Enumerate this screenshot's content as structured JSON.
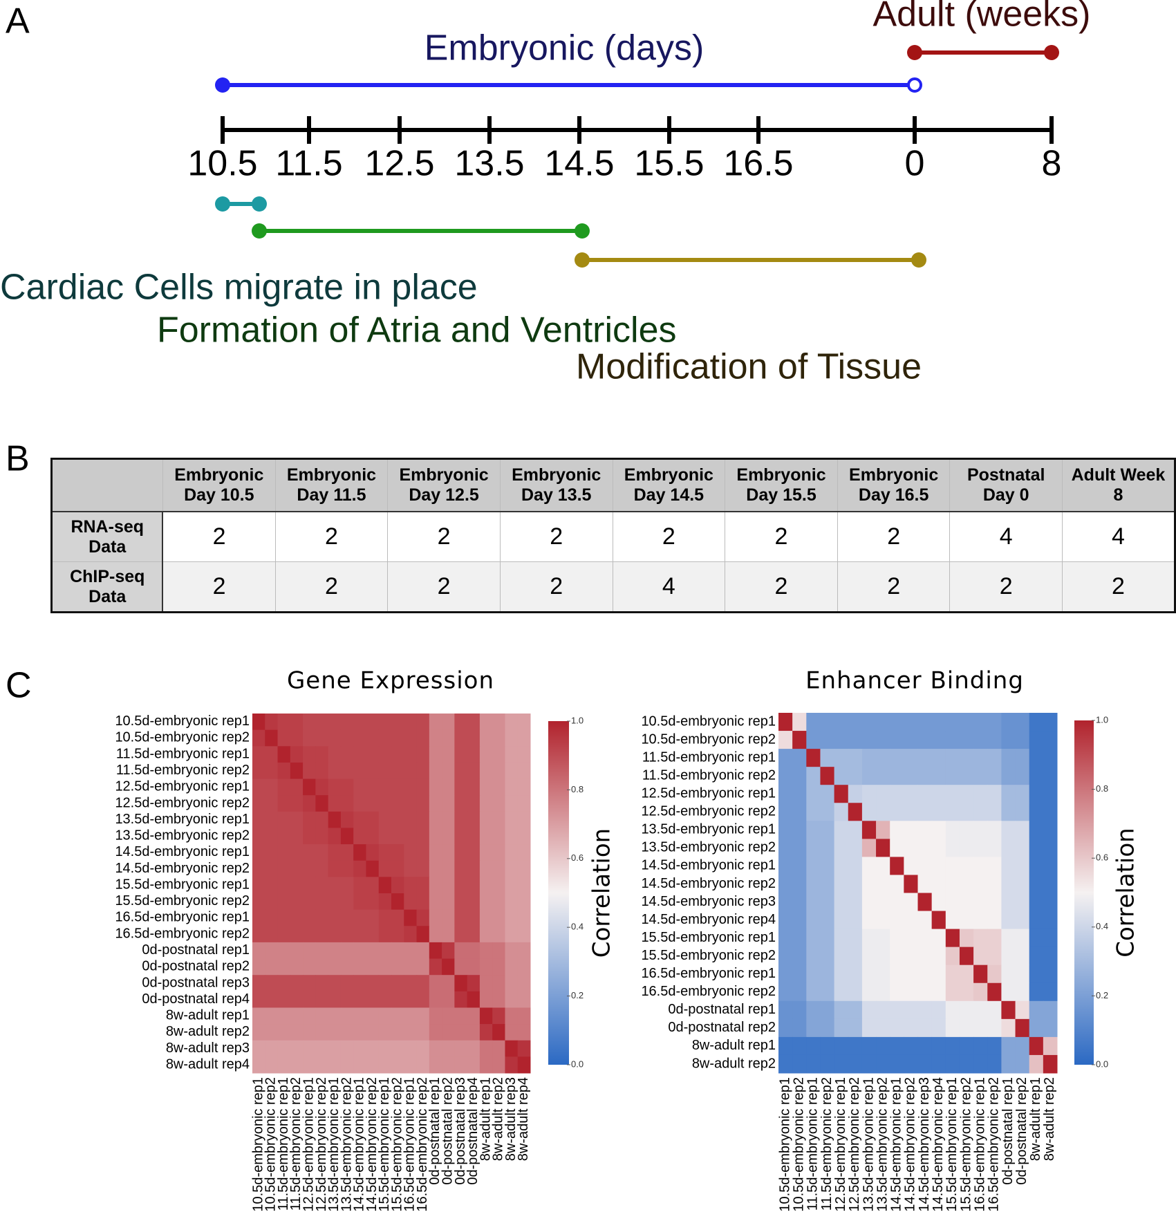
{
  "panels": {
    "a": "A",
    "b": "B",
    "c": "C"
  },
  "timeline": {
    "ticks": [
      "10.5",
      "11.5",
      "12.5",
      "13.5",
      "14.5",
      "15.5",
      "16.5",
      "0",
      "8"
    ],
    "phases": [
      {
        "label": "Embryonic (days)"
      },
      {
        "label": "Adult (weeks)"
      },
      {
        "label": "Cardiac Cells migrate in place"
      },
      {
        "label": "Formation of Atria and Ventricles"
      },
      {
        "label": "Modification of Tissue"
      }
    ]
  },
  "table": {
    "header": [
      [
        "Embryonic",
        "Day 10.5"
      ],
      [
        "Embryonic",
        "Day 11.5"
      ],
      [
        "Embryonic",
        "Day 12.5"
      ],
      [
        "Embryonic",
        "Day 13.5"
      ],
      [
        "Embryonic",
        "Day 14.5"
      ],
      [
        "Embryonic",
        "Day 15.5"
      ],
      [
        "Embryonic",
        "Day 16.5"
      ],
      [
        "Postnatal",
        "Day 0"
      ],
      [
        "Adult Week",
        "8"
      ]
    ],
    "rows": [
      {
        "label": [
          "RNA-seq",
          "Data"
        ],
        "cells": [
          2,
          2,
          2,
          2,
          2,
          2,
          2,
          4,
          4
        ]
      },
      {
        "label": [
          "ChIP-seq",
          "Data"
        ],
        "cells": [
          2,
          2,
          2,
          2,
          4,
          2,
          2,
          2,
          2
        ]
      }
    ]
  },
  "chart_data": [
    {
      "type": "heatmap",
      "title": "Gene Expression",
      "colorbar_label": "Correlation",
      "rows": [
        "10.5d-embryonic rep1",
        "10.5d-embryonic rep2",
        "11.5d-embryonic rep1",
        "11.5d-embryonic rep2",
        "12.5d-embryonic rep1",
        "12.5d-embryonic rep2",
        "13.5d-embryonic rep1",
        "13.5d-embryonic rep2",
        "14.5d-embryonic rep1",
        "14.5d-embryonic rep2",
        "15.5d-embryonic rep1",
        "15.5d-embryonic rep2",
        "16.5d-embryonic rep1",
        "16.5d-embryonic rep2",
        "0d-postnatal rep1",
        "0d-postnatal rep2",
        "0d-postnatal rep3",
        "0d-postnatal rep4",
        "8w-adult rep1",
        "8w-adult rep2",
        "8w-adult rep3",
        "8w-adult rep4"
      ],
      "columns": [
        "10.5d-embryonic rep1",
        "10.5d-embryonic rep2",
        "11.5d-embryonic rep1",
        "11.5d-embryonic rep2",
        "12.5d-embryonic rep1",
        "12.5d-embryonic rep2",
        "13.5d-embryonic rep1",
        "13.5d-embryonic rep2",
        "14.5d-embryonic rep1",
        "14.5d-embryonic rep2",
        "15.5d-embryonic rep1",
        "15.5d-embryonic rep2",
        "16.5d-embryonic rep1",
        "16.5d-embryonic rep2",
        "0d-postnatal rep1",
        "0d-postnatal rep2",
        "0d-postnatal rep3",
        "0d-postnatal rep4",
        "8w-adult rep1",
        "8w-adult rep2",
        "8w-adult rep3",
        "8w-adult rep4"
      ],
      "values": [
        [
          1,
          0.95,
          0.93,
          0.93,
          0.91,
          0.91,
          0.91,
          0.91,
          0.91,
          0.91,
          0.91,
          0.91,
          0.91,
          0.91,
          0.77,
          0.77,
          0.9,
          0.9,
          0.74,
          0.74,
          0.7,
          0.7
        ],
        [
          0.95,
          1,
          0.93,
          0.93,
          0.91,
          0.91,
          0.91,
          0.91,
          0.91,
          0.91,
          0.91,
          0.91,
          0.91,
          0.91,
          0.77,
          0.77,
          0.9,
          0.9,
          0.74,
          0.74,
          0.7,
          0.7
        ],
        [
          0.93,
          0.93,
          1,
          0.95,
          0.93,
          0.93,
          0.91,
          0.91,
          0.91,
          0.91,
          0.91,
          0.91,
          0.91,
          0.91,
          0.77,
          0.77,
          0.9,
          0.9,
          0.74,
          0.74,
          0.7,
          0.7
        ],
        [
          0.93,
          0.93,
          0.95,
          1,
          0.93,
          0.93,
          0.91,
          0.91,
          0.91,
          0.91,
          0.91,
          0.91,
          0.91,
          0.91,
          0.77,
          0.77,
          0.9,
          0.9,
          0.74,
          0.74,
          0.7,
          0.7
        ],
        [
          0.91,
          0.91,
          0.93,
          0.93,
          1,
          0.95,
          0.93,
          0.93,
          0.91,
          0.91,
          0.91,
          0.91,
          0.91,
          0.91,
          0.77,
          0.77,
          0.9,
          0.9,
          0.74,
          0.74,
          0.7,
          0.7
        ],
        [
          0.91,
          0.91,
          0.93,
          0.93,
          0.95,
          1,
          0.93,
          0.93,
          0.91,
          0.91,
          0.91,
          0.91,
          0.91,
          0.91,
          0.77,
          0.77,
          0.9,
          0.9,
          0.74,
          0.74,
          0.7,
          0.7
        ],
        [
          0.91,
          0.91,
          0.91,
          0.91,
          0.93,
          0.93,
          1,
          0.95,
          0.93,
          0.93,
          0.91,
          0.91,
          0.91,
          0.91,
          0.77,
          0.77,
          0.9,
          0.9,
          0.74,
          0.74,
          0.7,
          0.7
        ],
        [
          0.91,
          0.91,
          0.91,
          0.91,
          0.93,
          0.93,
          0.95,
          1,
          0.93,
          0.93,
          0.91,
          0.91,
          0.91,
          0.91,
          0.77,
          0.77,
          0.9,
          0.9,
          0.74,
          0.74,
          0.7,
          0.7
        ],
        [
          0.91,
          0.91,
          0.91,
          0.91,
          0.91,
          0.91,
          0.93,
          0.93,
          1,
          0.95,
          0.93,
          0.93,
          0.91,
          0.91,
          0.77,
          0.77,
          0.9,
          0.9,
          0.74,
          0.74,
          0.7,
          0.7
        ],
        [
          0.91,
          0.91,
          0.91,
          0.91,
          0.91,
          0.91,
          0.93,
          0.93,
          0.95,
          1,
          0.93,
          0.93,
          0.91,
          0.91,
          0.77,
          0.77,
          0.9,
          0.9,
          0.74,
          0.74,
          0.7,
          0.7
        ],
        [
          0.91,
          0.91,
          0.91,
          0.91,
          0.91,
          0.91,
          0.91,
          0.91,
          0.93,
          0.93,
          1,
          0.95,
          0.93,
          0.93,
          0.77,
          0.77,
          0.9,
          0.9,
          0.74,
          0.74,
          0.7,
          0.7
        ],
        [
          0.91,
          0.91,
          0.91,
          0.91,
          0.91,
          0.91,
          0.91,
          0.91,
          0.93,
          0.93,
          0.95,
          1,
          0.93,
          0.93,
          0.77,
          0.77,
          0.9,
          0.9,
          0.74,
          0.74,
          0.7,
          0.7
        ],
        [
          0.91,
          0.91,
          0.91,
          0.91,
          0.91,
          0.91,
          0.91,
          0.91,
          0.91,
          0.91,
          0.93,
          0.93,
          1,
          0.95,
          0.77,
          0.77,
          0.9,
          0.9,
          0.74,
          0.74,
          0.7,
          0.7
        ],
        [
          0.91,
          0.91,
          0.91,
          0.91,
          0.91,
          0.91,
          0.91,
          0.91,
          0.91,
          0.91,
          0.93,
          0.93,
          0.95,
          1,
          0.77,
          0.77,
          0.9,
          0.9,
          0.74,
          0.74,
          0.7,
          0.7
        ],
        [
          0.77,
          0.77,
          0.77,
          0.77,
          0.77,
          0.77,
          0.77,
          0.77,
          0.77,
          0.77,
          0.77,
          0.77,
          0.77,
          0.77,
          1,
          0.95,
          0.82,
          0.82,
          0.8,
          0.8,
          0.74,
          0.74
        ],
        [
          0.77,
          0.77,
          0.77,
          0.77,
          0.77,
          0.77,
          0.77,
          0.77,
          0.77,
          0.77,
          0.77,
          0.77,
          0.77,
          0.77,
          0.95,
          1,
          0.82,
          0.82,
          0.8,
          0.8,
          0.74,
          0.74
        ],
        [
          0.9,
          0.9,
          0.9,
          0.9,
          0.9,
          0.9,
          0.9,
          0.9,
          0.9,
          0.9,
          0.9,
          0.9,
          0.9,
          0.9,
          0.82,
          0.82,
          1,
          0.96,
          0.8,
          0.8,
          0.74,
          0.74
        ],
        [
          0.9,
          0.9,
          0.9,
          0.9,
          0.9,
          0.9,
          0.9,
          0.9,
          0.9,
          0.9,
          0.9,
          0.9,
          0.9,
          0.9,
          0.82,
          0.82,
          0.96,
          1,
          0.8,
          0.8,
          0.74,
          0.74
        ],
        [
          0.74,
          0.74,
          0.74,
          0.74,
          0.74,
          0.74,
          0.74,
          0.74,
          0.74,
          0.74,
          0.74,
          0.74,
          0.74,
          0.74,
          0.8,
          0.8,
          0.8,
          0.8,
          1,
          0.95,
          0.8,
          0.8
        ],
        [
          0.74,
          0.74,
          0.74,
          0.74,
          0.74,
          0.74,
          0.74,
          0.74,
          0.74,
          0.74,
          0.74,
          0.74,
          0.74,
          0.74,
          0.8,
          0.8,
          0.8,
          0.8,
          0.95,
          1,
          0.8,
          0.8
        ],
        [
          0.7,
          0.7,
          0.7,
          0.7,
          0.7,
          0.7,
          0.7,
          0.7,
          0.7,
          0.7,
          0.7,
          0.7,
          0.7,
          0.7,
          0.74,
          0.74,
          0.74,
          0.74,
          0.8,
          0.8,
          1,
          0.96
        ],
        [
          0.7,
          0.7,
          0.7,
          0.7,
          0.7,
          0.7,
          0.7,
          0.7,
          0.7,
          0.7,
          0.7,
          0.7,
          0.7,
          0.7,
          0.74,
          0.74,
          0.74,
          0.74,
          0.8,
          0.8,
          0.96,
          1
        ]
      ],
      "zlim": [
        0,
        1
      ],
      "zticks": [
        {
          "value": 0,
          "label": "0.0"
        },
        0.2,
        0.4,
        0.6,
        0.8,
        {
          "value": 1,
          "label": "1.0"
        }
      ],
      "colormap": [
        "#2b69c3",
        "#f5f1f1",
        "#b1232d"
      ]
    },
    {
      "type": "heatmap",
      "title": "Enhancer Binding",
      "colorbar_label": "Correlation",
      "rows": [
        "10.5d-embryonic rep1",
        "10.5d-embryonic rep2",
        "11.5d-embryonic rep1",
        "11.5d-embryonic rep2",
        "12.5d-embryonic rep1",
        "12.5d-embryonic rep2",
        "13.5d-embryonic rep1",
        "13.5d-embryonic rep2",
        "14.5d-embryonic rep1",
        "14.5d-embryonic rep2",
        "14.5d-embryonic rep3",
        "14.5d-embryonic rep4",
        "15.5d-embryonic rep1",
        "15.5d-embryonic rep2",
        "16.5d-embryonic rep1",
        "16.5d-embryonic rep2",
        "0d-postnatal rep1",
        "0d-postnatal rep2",
        "8w-adult rep1",
        "8w-adult rep2"
      ],
      "columns": [
        "10.5d-embryonic rep1",
        "10.5d-embryonic rep2",
        "11.5d-embryonic rep1",
        "11.5d-embryonic rep2",
        "12.5d-embryonic rep1",
        "12.5d-embryonic rep2",
        "13.5d-embryonic rep1",
        "13.5d-embryonic rep2",
        "14.5d-embryonic rep1",
        "14.5d-embryonic rep2",
        "14.5d-embryonic rep3",
        "14.5d-embryonic rep4",
        "15.5d-embryonic rep1",
        "15.5d-embryonic rep2",
        "16.5d-embryonic rep1",
        "16.5d-embryonic rep2",
        "0d-postnatal rep1",
        "0d-postnatal rep2",
        "8w-adult rep1",
        "8w-adult rep2"
      ],
      "values": [
        [
          1,
          0.55,
          0.18,
          0.18,
          0.18,
          0.18,
          0.18,
          0.18,
          0.18,
          0.18,
          0.18,
          0.18,
          0.18,
          0.18,
          0.18,
          0.18,
          0.15,
          0.15,
          0.05,
          0.05
        ],
        [
          0.55,
          1,
          0.18,
          0.18,
          0.18,
          0.18,
          0.18,
          0.18,
          0.18,
          0.18,
          0.18,
          0.18,
          0.18,
          0.18,
          0.18,
          0.18,
          0.15,
          0.15,
          0.05,
          0.05
        ],
        [
          0.18,
          0.18,
          1,
          0.3,
          0.3,
          0.3,
          0.28,
          0.28,
          0.28,
          0.28,
          0.28,
          0.28,
          0.28,
          0.28,
          0.28,
          0.28,
          0.22,
          0.22,
          0.05,
          0.05
        ],
        [
          0.18,
          0.18,
          0.3,
          1,
          0.3,
          0.3,
          0.28,
          0.28,
          0.28,
          0.28,
          0.28,
          0.28,
          0.28,
          0.28,
          0.28,
          0.28,
          0.22,
          0.22,
          0.05,
          0.05
        ],
        [
          0.18,
          0.18,
          0.3,
          0.3,
          1,
          0.38,
          0.4,
          0.4,
          0.4,
          0.4,
          0.4,
          0.4,
          0.4,
          0.4,
          0.4,
          0.4,
          0.3,
          0.3,
          0.05,
          0.05
        ],
        [
          0.18,
          0.18,
          0.3,
          0.3,
          0.38,
          1,
          0.4,
          0.4,
          0.4,
          0.4,
          0.4,
          0.4,
          0.4,
          0.4,
          0.4,
          0.4,
          0.3,
          0.3,
          0.05,
          0.05
        ],
        [
          0.18,
          0.18,
          0.28,
          0.28,
          0.4,
          0.4,
          1,
          0.65,
          0.5,
          0.5,
          0.5,
          0.5,
          0.48,
          0.48,
          0.48,
          0.48,
          0.42,
          0.42,
          0.05,
          0.05
        ],
        [
          0.18,
          0.18,
          0.28,
          0.28,
          0.4,
          0.4,
          0.65,
          1,
          0.5,
          0.5,
          0.5,
          0.5,
          0.48,
          0.48,
          0.48,
          0.48,
          0.42,
          0.42,
          0.05,
          0.05
        ],
        [
          0.18,
          0.18,
          0.28,
          0.28,
          0.4,
          0.4,
          0.5,
          0.5,
          1,
          0.5,
          0.5,
          0.5,
          0.5,
          0.5,
          0.5,
          0.5,
          0.42,
          0.42,
          0.05,
          0.05
        ],
        [
          0.18,
          0.18,
          0.28,
          0.28,
          0.4,
          0.4,
          0.5,
          0.5,
          0.5,
          1,
          0.5,
          0.5,
          0.5,
          0.5,
          0.5,
          0.5,
          0.42,
          0.42,
          0.05,
          0.05
        ],
        [
          0.18,
          0.18,
          0.28,
          0.28,
          0.4,
          0.4,
          0.5,
          0.5,
          0.5,
          0.5,
          1,
          0.5,
          0.5,
          0.5,
          0.5,
          0.5,
          0.42,
          0.42,
          0.05,
          0.05
        ],
        [
          0.18,
          0.18,
          0.28,
          0.28,
          0.4,
          0.4,
          0.5,
          0.5,
          0.5,
          0.5,
          0.5,
          1,
          0.5,
          0.5,
          0.5,
          0.5,
          0.42,
          0.42,
          0.05,
          0.05
        ],
        [
          0.18,
          0.18,
          0.28,
          0.28,
          0.4,
          0.4,
          0.48,
          0.48,
          0.5,
          0.5,
          0.5,
          0.5,
          1,
          0.6,
          0.58,
          0.58,
          0.48,
          0.48,
          0.05,
          0.05
        ],
        [
          0.18,
          0.18,
          0.28,
          0.28,
          0.4,
          0.4,
          0.48,
          0.48,
          0.5,
          0.5,
          0.5,
          0.5,
          0.6,
          1,
          0.58,
          0.58,
          0.48,
          0.48,
          0.05,
          0.05
        ],
        [
          0.18,
          0.18,
          0.28,
          0.28,
          0.4,
          0.4,
          0.48,
          0.48,
          0.5,
          0.5,
          0.5,
          0.5,
          0.58,
          0.58,
          1,
          0.6,
          0.48,
          0.48,
          0.05,
          0.05
        ],
        [
          0.18,
          0.18,
          0.28,
          0.28,
          0.4,
          0.4,
          0.48,
          0.48,
          0.5,
          0.5,
          0.5,
          0.5,
          0.58,
          0.58,
          0.6,
          1,
          0.48,
          0.48,
          0.05,
          0.05
        ],
        [
          0.15,
          0.15,
          0.22,
          0.22,
          0.3,
          0.3,
          0.42,
          0.42,
          0.42,
          0.42,
          0.42,
          0.42,
          0.48,
          0.48,
          0.48,
          0.48,
          1,
          0.55,
          0.22,
          0.22
        ],
        [
          0.15,
          0.15,
          0.22,
          0.22,
          0.3,
          0.3,
          0.42,
          0.42,
          0.42,
          0.42,
          0.42,
          0.42,
          0.48,
          0.48,
          0.48,
          0.48,
          0.55,
          1,
          0.22,
          0.22
        ],
        [
          0.05,
          0.05,
          0.05,
          0.05,
          0.05,
          0.05,
          0.05,
          0.05,
          0.05,
          0.05,
          0.05,
          0.05,
          0.05,
          0.05,
          0.05,
          0.05,
          0.22,
          0.22,
          1,
          0.62
        ],
        [
          0.05,
          0.05,
          0.05,
          0.05,
          0.05,
          0.05,
          0.05,
          0.05,
          0.05,
          0.05,
          0.05,
          0.05,
          0.05,
          0.05,
          0.05,
          0.05,
          0.22,
          0.22,
          0.62,
          1
        ]
      ],
      "zlim": [
        0,
        1
      ],
      "zticks": [
        {
          "value": 0,
          "label": "0.0"
        },
        0.2,
        0.4,
        0.6,
        0.8,
        {
          "value": 1,
          "label": "1.0"
        }
      ],
      "colormap": [
        "#2b69c3",
        "#f5f1f1",
        "#b1232d"
      ]
    }
  ]
}
